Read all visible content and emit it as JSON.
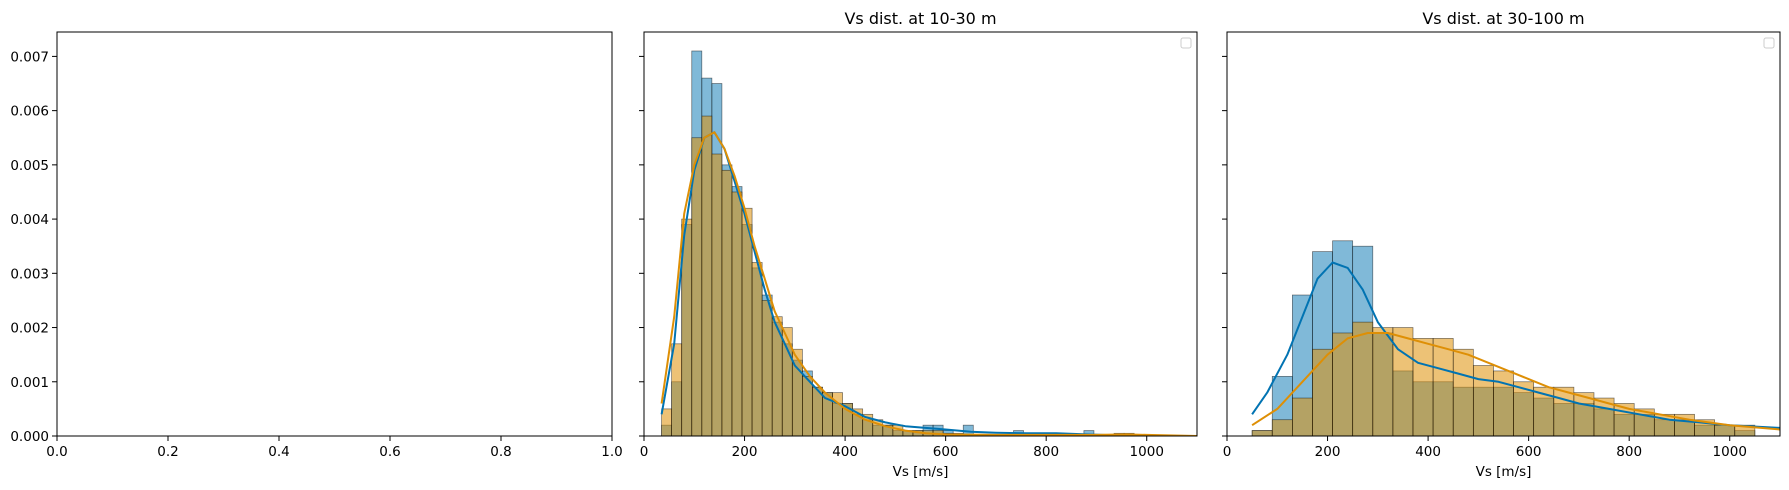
{
  "colors": {
    "blue": "#0173b2",
    "orange": "#de8f05",
    "blue_fill": "rgba(1,115,178,0.5)",
    "orange_fill": "rgba(222,143,5,0.55)"
  },
  "chart_data": [
    {
      "type": "empty",
      "title": "",
      "xlabel": "",
      "ylabel": "",
      "xlim": [
        0,
        1
      ],
      "ylim": [
        0,
        0.00745
      ],
      "xticks": [
        "0.0",
        "0.2",
        "0.4",
        "0.6",
        "0.8",
        "1.0"
      ],
      "yticks": [
        "0.000",
        "0.001",
        "0.002",
        "0.003",
        "0.004",
        "0.005",
        "0.006",
        "0.007"
      ]
    },
    {
      "type": "histogram",
      "title": "Vs dist. at 10-30 m",
      "xlabel": "Vs [m/s]",
      "ylabel": "",
      "xlim": [
        0,
        1100
      ],
      "ylim": [
        0,
        0.00745
      ],
      "xticks": [
        "0",
        "200",
        "400",
        "600",
        "800",
        "1000"
      ],
      "legend": "top-right (empty)",
      "bins": {
        "start": 35,
        "width": 20,
        "series": [
          {
            "color": "blue",
            "density": [
              0.0002,
              0.001,
              0.0039,
              0.0071,
              0.0066,
              0.0065,
              0.005,
              0.0046,
              0.0039,
              0.0031,
              0.0026,
              0.0021,
              0.0017,
              0.0014,
              0.0012,
              0.0009,
              0.0008,
              0.0006,
              0.0006,
              0.0004,
              0.0003,
              0.0002,
              0.0002,
              0.0001,
              0.0001,
              0.0001,
              0.0002,
              0.0002,
              0.0001,
              0.0,
              0.0002,
              0.0,
              0.0,
              0.0,
              0.0,
              0.0001,
              0.0,
              0.0,
              0.0,
              5e-05,
              0.0,
              0.0,
              0.0001,
              0.0,
              0.0,
              0.0,
              0.0,
              0.0,
              0.0,
              0.0,
              0.0,
              0.0,
              0.0,
              0.0,
              0.0
            ],
            "kde": [
              [
                35,
                0.0004
              ],
              [
                60,
                0.0017
              ],
              [
                80,
                0.0037
              ],
              [
                100,
                0.0049
              ],
              [
                120,
                0.0055
              ],
              [
                140,
                0.0056
              ],
              [
                160,
                0.0053
              ],
              [
                180,
                0.0047
              ],
              [
                200,
                0.0041
              ],
              [
                220,
                0.0034
              ],
              [
                240,
                0.0027
              ],
              [
                260,
                0.0021
              ],
              [
                280,
                0.0017
              ],
              [
                300,
                0.0013
              ],
              [
                330,
                0.001
              ],
              [
                360,
                0.0007
              ],
              [
                400,
                0.00055
              ],
              [
                440,
                0.00035
              ],
              [
                480,
                0.00025
              ],
              [
                520,
                0.00018
              ],
              [
                560,
                0.00015
              ],
              [
                600,
                0.00012
              ],
              [
                650,
                8e-05
              ],
              [
                700,
                6e-05
              ],
              [
                760,
                5e-05
              ],
              [
                820,
                5e-05
              ],
              [
                880,
                3e-05
              ],
              [
                950,
                1e-05
              ],
              [
                1000,
                0.0
              ],
              [
                1100,
                0.0
              ]
            ]
          },
          {
            "color": "orange",
            "density": [
              0.0005,
              0.0017,
              0.004,
              0.0055,
              0.0059,
              0.0052,
              0.0049,
              0.0045,
              0.0042,
              0.0032,
              0.0025,
              0.0022,
              0.002,
              0.0016,
              0.0011,
              0.0009,
              0.0008,
              0.0008,
              0.0006,
              0.0005,
              0.0004,
              0.0003,
              0.0002,
              0.0002,
              0.0001,
              0.0001,
              0.0001,
              0.0001,
              5e-05,
              5e-05,
              0.0,
              0.0,
              0.0,
              0.0,
              0.0,
              0.0,
              0.0,
              0.0,
              0.0,
              0.0,
              0.0,
              0.0,
              0.0,
              0.0,
              0.0,
              5e-05,
              5e-05,
              0.0,
              0.0,
              0.0,
              0.0,
              0.0,
              0.0,
              0.0,
              0.0
            ],
            "kde": [
              [
                35,
                0.0006
              ],
              [
                60,
                0.0022
              ],
              [
                80,
                0.0041
              ],
              [
                100,
                0.005
              ],
              [
                120,
                0.0055
              ],
              [
                140,
                0.0056
              ],
              [
                160,
                0.0053
              ],
              [
                180,
                0.0048
              ],
              [
                200,
                0.0042
              ],
              [
                220,
                0.0035
              ],
              [
                240,
                0.0029
              ],
              [
                260,
                0.0023
              ],
              [
                280,
                0.0019
              ],
              [
                300,
                0.0015
              ],
              [
                330,
                0.0011
              ],
              [
                360,
                0.0008
              ],
              [
                400,
                0.0005
              ],
              [
                440,
                0.0003
              ],
              [
                480,
                0.00018
              ],
              [
                520,
                0.0001
              ],
              [
                560,
                5e-05
              ],
              [
                600,
                3e-05
              ],
              [
                700,
                2e-05
              ],
              [
                800,
                2e-05
              ],
              [
                900,
                2e-05
              ],
              [
                960,
                3e-05
              ],
              [
                1000,
                2e-05
              ],
              [
                1100,
                0.0
              ]
            ]
          }
        ]
      }
    },
    {
      "type": "histogram",
      "title": "Vs dist. at 30-100 m",
      "xlabel": "Vs [m/s]",
      "ylabel": "",
      "xlim": [
        0,
        1100
      ],
      "ylim": [
        0,
        0.00745
      ],
      "xticks": [
        "0",
        "200",
        "400",
        "600",
        "800",
        "1000"
      ],
      "legend": "top-right (empty)",
      "bins": {
        "start": 50,
        "width": 40,
        "series": [
          {
            "color": "blue",
            "density": [
              0.0001,
              0.0011,
              0.0026,
              0.0034,
              0.0036,
              0.0035,
              0.0019,
              0.0012,
              0.001,
              0.001,
              0.0009,
              0.0009,
              0.0009,
              0.0008,
              0.0007,
              0.0006,
              0.0006,
              0.0005,
              0.0004,
              0.0004,
              0.0003,
              0.0003,
              0.0002,
              0.0002,
              0.0001
            ],
            "kde": [
              [
                50,
                0.0004
              ],
              [
                80,
                0.0008
              ],
              [
                120,
                0.0015
              ],
              [
                150,
                0.0022
              ],
              [
                180,
                0.0029
              ],
              [
                210,
                0.0032
              ],
              [
                240,
                0.0031
              ],
              [
                270,
                0.0027
              ],
              [
                300,
                0.0021
              ],
              [
                340,
                0.0016
              ],
              [
                380,
                0.00135
              ],
              [
                420,
                0.00125
              ],
              [
                460,
                0.00115
              ],
              [
                500,
                0.00105
              ],
              [
                540,
                0.001
              ],
              [
                580,
                0.0009
              ],
              [
                620,
                0.0008
              ],
              [
                660,
                0.0007
              ],
              [
                700,
                0.0006
              ],
              [
                760,
                0.0005
              ],
              [
                820,
                0.0004
              ],
              [
                880,
                0.0003
              ],
              [
                940,
                0.00025
              ],
              [
                1000,
                0.0002
              ],
              [
                1100,
                0.00015
              ]
            ]
          },
          {
            "color": "orange",
            "density": [
              0.0001,
              0.0003,
              0.0007,
              0.0016,
              0.0019,
              0.0021,
              0.002,
              0.002,
              0.0018,
              0.0018,
              0.0016,
              0.0013,
              0.0012,
              0.001,
              0.0009,
              0.0009,
              0.0008,
              0.0007,
              0.0006,
              0.0005,
              0.0004,
              0.0004,
              0.0003,
              0.0002,
              0.0002
            ],
            "kde": [
              [
                50,
                0.0002
              ],
              [
                100,
                0.0005
              ],
              [
                150,
                0.001
              ],
              [
                200,
                0.0015
              ],
              [
                240,
                0.0018
              ],
              [
                280,
                0.0019
              ],
              [
                320,
                0.0019
              ],
              [
                360,
                0.0018
              ],
              [
                400,
                0.0017
              ],
              [
                440,
                0.0016
              ],
              [
                480,
                0.0015
              ],
              [
                520,
                0.00135
              ],
              [
                560,
                0.0012
              ],
              [
                600,
                0.00105
              ],
              [
                640,
                0.0009
              ],
              [
                680,
                0.0008
              ],
              [
                720,
                0.0007
              ],
              [
                760,
                0.0006
              ],
              [
                800,
                0.0005
              ],
              [
                860,
                0.0004
              ],
              [
                920,
                0.0003
              ],
              [
                1000,
                0.0002
              ],
              [
                1100,
                0.00012
              ]
            ]
          }
        ]
      }
    }
  ]
}
